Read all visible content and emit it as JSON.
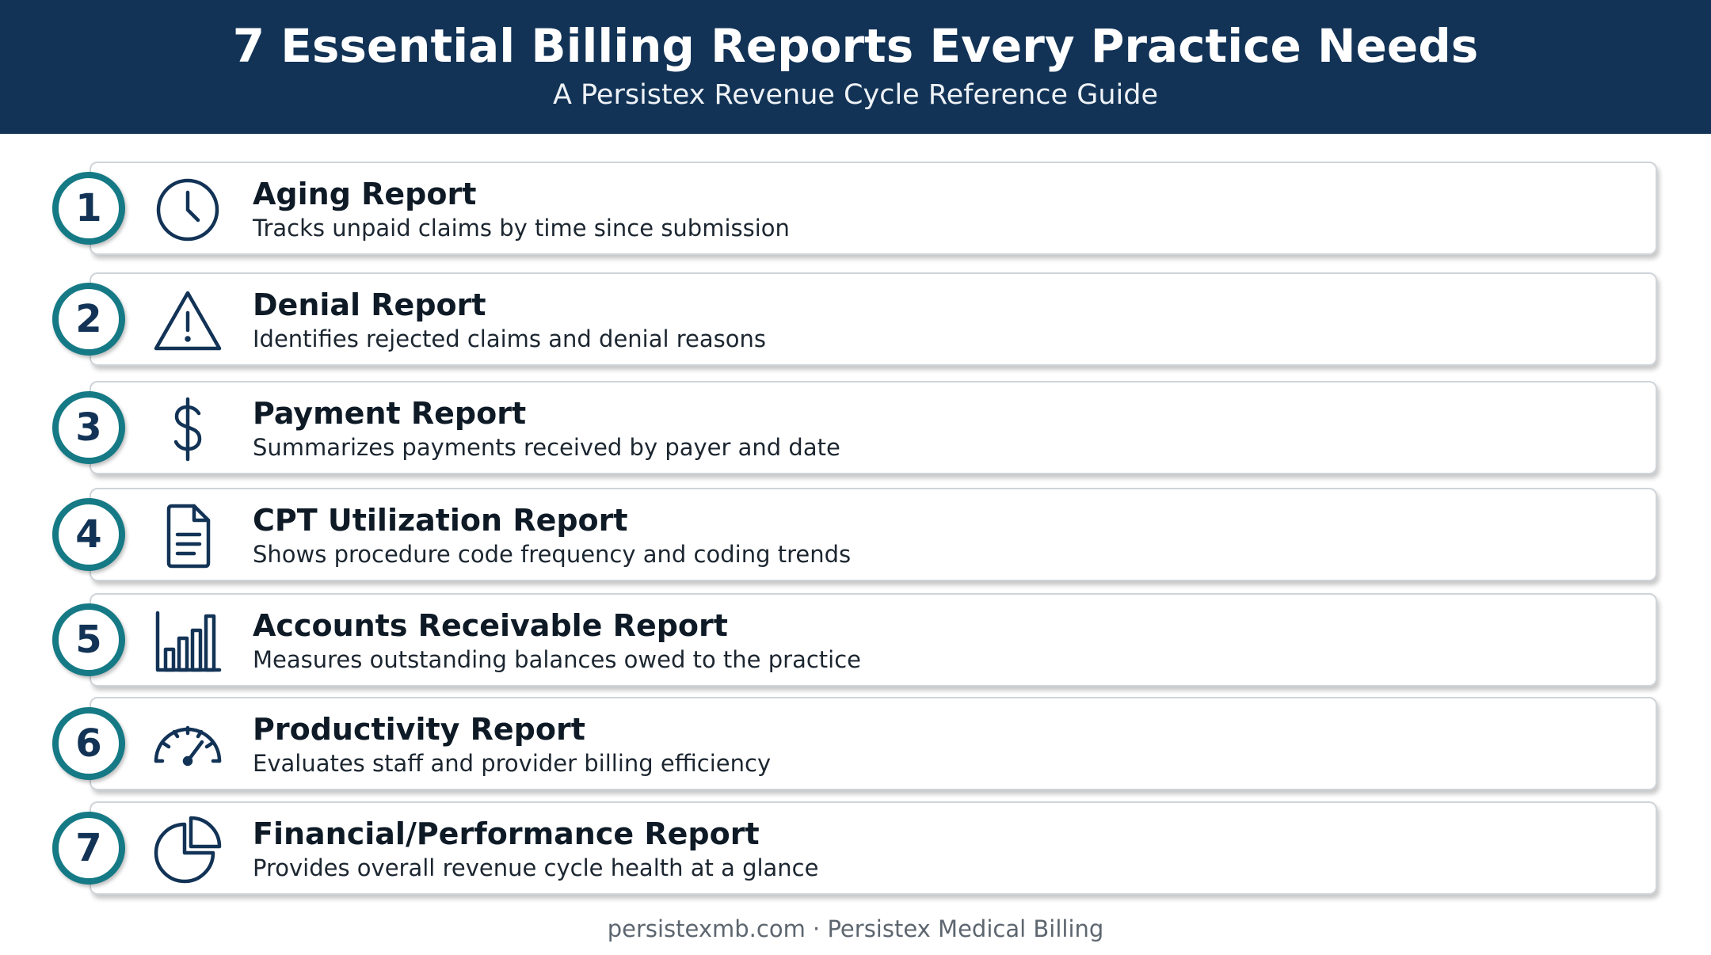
{
  "header": {
    "title": "7 Essential Billing Reports Every Practice Needs",
    "subtitle": "A Persistex Revenue Cycle Reference Guide"
  },
  "colors": {
    "header_bg": "#123356",
    "accent_teal": "#157a85",
    "icon_navy": "#123356"
  },
  "reports": [
    {
      "number": "1",
      "icon": "clock-icon",
      "title": "Aging Report",
      "description": "Tracks unpaid claims by time since submission"
    },
    {
      "number": "2",
      "icon": "warning-icon",
      "title": "Denial Report",
      "description": "Identifies rejected claims and denial reasons"
    },
    {
      "number": "3",
      "icon": "dollar-icon",
      "title": "Payment Report",
      "description": "Summarizes payments received by payer and date"
    },
    {
      "number": "4",
      "icon": "document-icon",
      "title": "CPT Utilization Report",
      "description": "Shows procedure code frequency and coding trends"
    },
    {
      "number": "5",
      "icon": "bar-chart-icon",
      "title": "Accounts Receivable Report",
      "description": "Measures outstanding balances owed to the practice"
    },
    {
      "number": "6",
      "icon": "gauge-icon",
      "title": "Productivity Report",
      "description": "Evaluates staff and provider billing efficiency"
    },
    {
      "number": "7",
      "icon": "pie-chart-icon",
      "title": "Financial/Performance Report",
      "description": "Provides overall revenue cycle health at a glance"
    }
  ],
  "footer": {
    "text": "persistexmb.com · Persistex Medical Billing"
  }
}
